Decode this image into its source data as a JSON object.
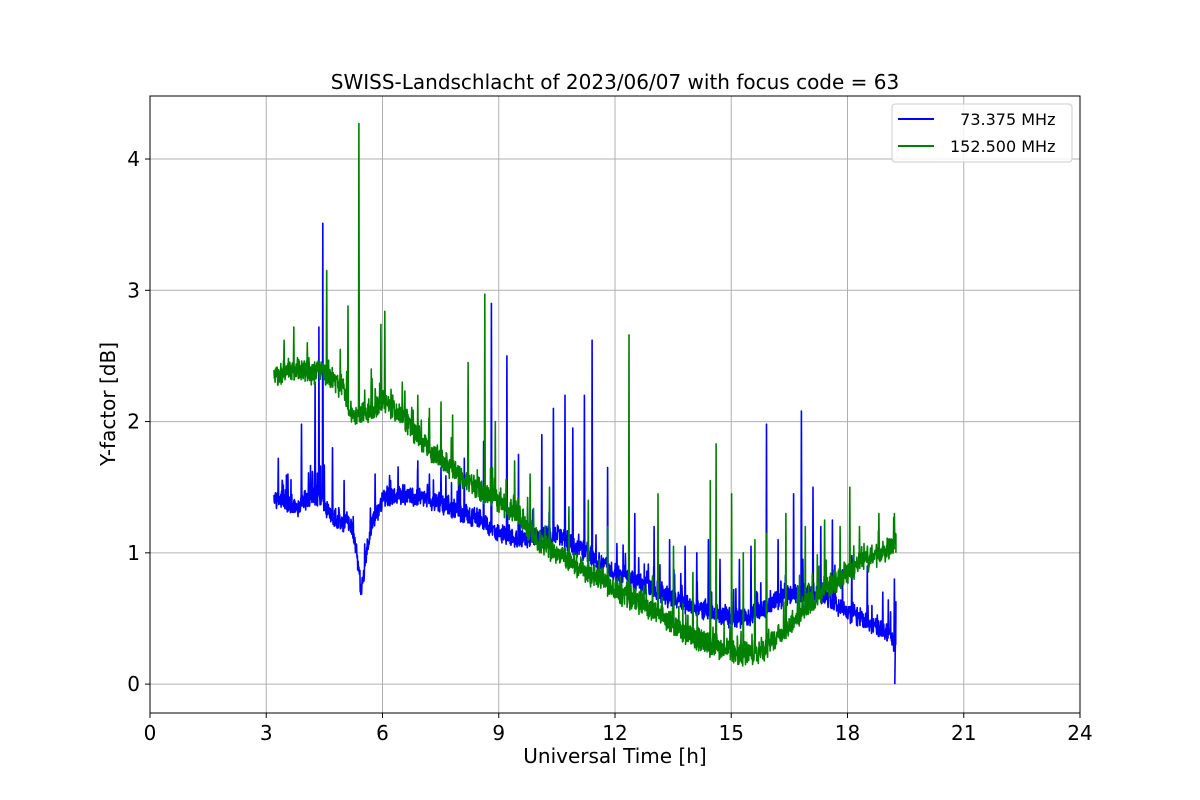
{
  "chart_data": {
    "type": "line",
    "title": "SWISS-Landschlacht of 2023/06/07 with focus code = 63",
    "xlabel": "Universal Time [h]",
    "ylabel": "Y-factor [dB]",
    "xlim": [
      0,
      24
    ],
    "ylim": [
      -0.22,
      4.48
    ],
    "xticks": [
      0,
      3,
      6,
      9,
      12,
      15,
      18,
      21,
      24
    ],
    "xtick_labels": [
      "0",
      "3",
      "6",
      "9",
      "12",
      "15",
      "18",
      "21",
      "24"
    ],
    "yticks": [
      0,
      1,
      2,
      3,
      4
    ],
    "ytick_labels": [
      "0",
      "1",
      "2",
      "3",
      "4"
    ],
    "grid": true,
    "legend_position": "top-right",
    "series": [
      {
        "name": "  73.375 MHz",
        "color": "#0000ff",
        "baseline": [
          [
            3.2,
            1.42
          ],
          [
            3.5,
            1.38
          ],
          [
            3.8,
            1.35
          ],
          [
            4.1,
            1.42
          ],
          [
            4.4,
            1.45
          ],
          [
            4.6,
            1.32
          ],
          [
            4.9,
            1.22
          ],
          [
            5.1,
            1.25
          ],
          [
            5.25,
            1.15
          ],
          [
            5.35,
            0.95
          ],
          [
            5.45,
            0.72
          ],
          [
            5.55,
            0.9
          ],
          [
            5.7,
            1.2
          ],
          [
            6.0,
            1.4
          ],
          [
            6.5,
            1.45
          ],
          [
            7.0,
            1.42
          ],
          [
            7.5,
            1.38
          ],
          [
            8.0,
            1.32
          ],
          [
            8.5,
            1.25
          ],
          [
            9.0,
            1.15
          ],
          [
            9.5,
            1.1
          ],
          [
            10.0,
            1.12
          ],
          [
            10.5,
            1.15
          ],
          [
            11.0,
            1.05
          ],
          [
            11.5,
            0.95
          ],
          [
            12.0,
            0.85
          ],
          [
            12.5,
            0.78
          ],
          [
            13.0,
            0.72
          ],
          [
            13.5,
            0.65
          ],
          [
            14.0,
            0.6
          ],
          [
            14.5,
            0.55
          ],
          [
            15.0,
            0.5
          ],
          [
            15.5,
            0.52
          ],
          [
            16.0,
            0.6
          ],
          [
            16.5,
            0.68
          ],
          [
            17.0,
            0.7
          ],
          [
            17.5,
            0.65
          ],
          [
            18.0,
            0.55
          ],
          [
            18.5,
            0.48
          ],
          [
            19.0,
            0.4
          ],
          [
            19.25,
            0.32
          ]
        ],
        "noise": 0.07,
        "spikes": [
          [
            3.3,
            1.72
          ],
          [
            3.55,
            1.6
          ],
          [
            3.9,
            1.98
          ],
          [
            4.25,
            2.3
          ],
          [
            4.35,
            2.72
          ],
          [
            4.45,
            3.51
          ],
          [
            4.7,
            1.8
          ],
          [
            5.0,
            1.55
          ],
          [
            5.8,
            1.6
          ],
          [
            6.2,
            1.55
          ],
          [
            6.9,
            1.7
          ],
          [
            7.2,
            1.6
          ],
          [
            7.5,
            1.65
          ],
          [
            8.1,
            1.72
          ],
          [
            8.6,
            1.85
          ],
          [
            8.8,
            2.9
          ],
          [
            9.2,
            2.5
          ],
          [
            9.5,
            1.75
          ],
          [
            10.1,
            1.9
          ],
          [
            10.4,
            2.1
          ],
          [
            10.7,
            2.2
          ],
          [
            10.9,
            1.95
          ],
          [
            11.2,
            2.2
          ],
          [
            11.4,
            2.62
          ],
          [
            11.8,
            1.65
          ],
          [
            12.5,
            1.3
          ],
          [
            13.0,
            1.2
          ],
          [
            13.4,
            1.1
          ],
          [
            13.8,
            1.05
          ],
          [
            14.1,
            1.0
          ],
          [
            14.4,
            1.1
          ],
          [
            14.7,
            0.95
          ],
          [
            15.2,
            0.95
          ],
          [
            15.5,
            1.05
          ],
          [
            15.9,
            1.98
          ],
          [
            16.2,
            1.1
          ],
          [
            16.6,
            1.45
          ],
          [
            16.8,
            2.08
          ],
          [
            17.1,
            1.5
          ],
          [
            17.3,
            1.2
          ],
          [
            17.6,
            1.25
          ],
          [
            18.1,
            0.98
          ],
          [
            18.5,
            0.9
          ],
          [
            18.9,
            0.7
          ],
          [
            19.2,
            0.8
          ]
        ],
        "end": [
          19.22,
          0.0
        ]
      },
      {
        "name": "152.500 MHz",
        "color": "#008000",
        "baseline": [
          [
            3.2,
            2.35
          ],
          [
            3.5,
            2.4
          ],
          [
            4.0,
            2.38
          ],
          [
            4.5,
            2.37
          ],
          [
            5.0,
            2.25
          ],
          [
            5.2,
            2.05
          ],
          [
            5.5,
            2.05
          ],
          [
            6.0,
            2.15
          ],
          [
            6.5,
            2.05
          ],
          [
            7.0,
            1.85
          ],
          [
            7.5,
            1.7
          ],
          [
            8.0,
            1.58
          ],
          [
            8.5,
            1.48
          ],
          [
            9.0,
            1.38
          ],
          [
            9.5,
            1.3
          ],
          [
            10.0,
            1.1
          ],
          [
            10.5,
            1.0
          ],
          [
            11.0,
            0.9
          ],
          [
            11.5,
            0.82
          ],
          [
            12.0,
            0.72
          ],
          [
            12.5,
            0.65
          ],
          [
            13.0,
            0.55
          ],
          [
            13.5,
            0.45
          ],
          [
            14.0,
            0.35
          ],
          [
            14.5,
            0.3
          ],
          [
            15.0,
            0.25
          ],
          [
            15.5,
            0.22
          ],
          [
            16.0,
            0.3
          ],
          [
            16.5,
            0.45
          ],
          [
            17.0,
            0.6
          ],
          [
            17.5,
            0.75
          ],
          [
            18.0,
            0.85
          ],
          [
            18.5,
            0.95
          ],
          [
            19.0,
            1.02
          ],
          [
            19.25,
            1.08
          ]
        ],
        "noise": 0.08,
        "spikes": [
          [
            3.45,
            2.62
          ],
          [
            3.7,
            2.72
          ],
          [
            4.05,
            2.6
          ],
          [
            4.55,
            3.15
          ],
          [
            4.9,
            2.55
          ],
          [
            5.1,
            2.88
          ],
          [
            5.38,
            4.27
          ],
          [
            5.7,
            2.4
          ],
          [
            5.95,
            2.74
          ],
          [
            6.05,
            2.84
          ],
          [
            6.5,
            2.3
          ],
          [
            6.9,
            2.2
          ],
          [
            7.2,
            2.1
          ],
          [
            7.5,
            2.15
          ],
          [
            7.8,
            2.05
          ],
          [
            8.2,
            2.45
          ],
          [
            8.63,
            2.97
          ],
          [
            8.9,
            2.0
          ],
          [
            9.4,
            1.7
          ],
          [
            9.8,
            1.6
          ],
          [
            10.3,
            1.5
          ],
          [
            10.8,
            1.35
          ],
          [
            11.3,
            1.4
          ],
          [
            11.8,
            1.2
          ],
          [
            12.35,
            2.66
          ],
          [
            13.1,
            1.45
          ],
          [
            13.5,
            1.05
          ],
          [
            14.0,
            0.85
          ],
          [
            14.45,
            1.55
          ],
          [
            14.6,
            1.83
          ],
          [
            15.0,
            1.45
          ],
          [
            15.3,
            1.0
          ],
          [
            15.6,
            1.1
          ],
          [
            15.9,
            1.15
          ],
          [
            16.4,
            1.3
          ],
          [
            16.9,
            1.2
          ],
          [
            17.4,
            1.25
          ],
          [
            17.8,
            1.2
          ],
          [
            18.05,
            1.5
          ],
          [
            18.3,
            1.2
          ],
          [
            18.8,
            1.3
          ],
          [
            19.2,
            1.3
          ]
        ],
        "end": [
          19.25,
          1.0
        ]
      }
    ]
  }
}
